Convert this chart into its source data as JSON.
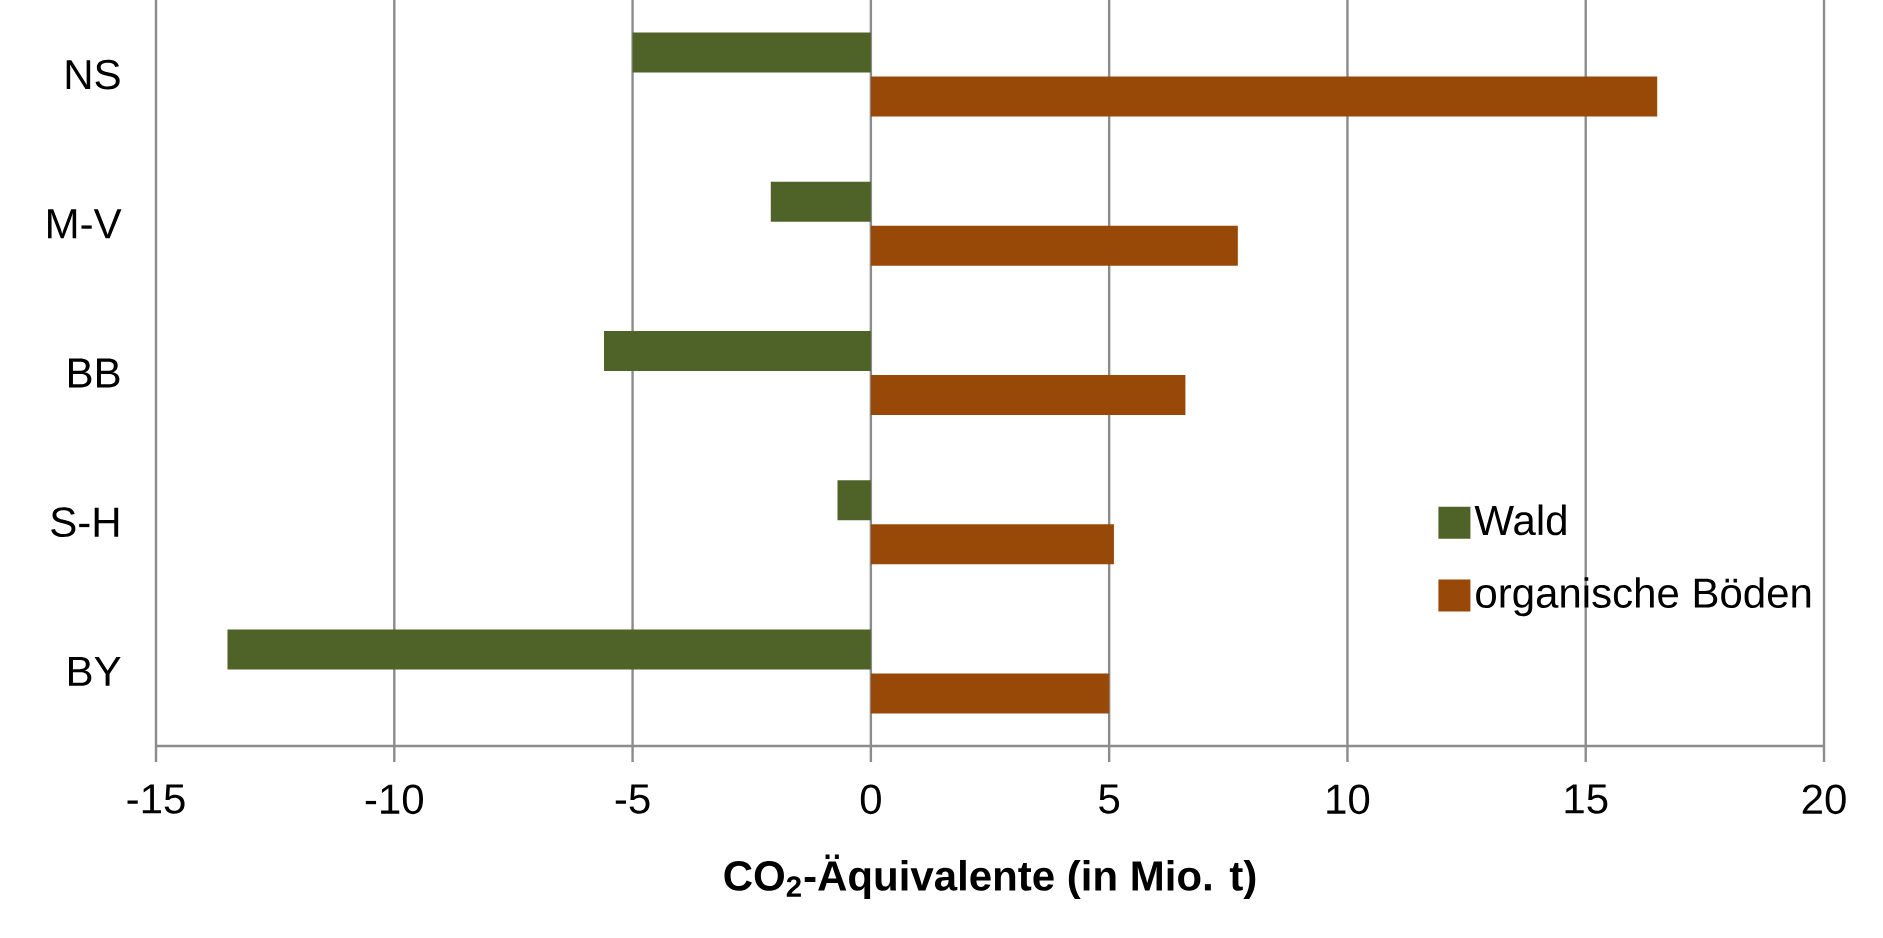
{
  "chart_data": {
    "type": "bar",
    "orientation": "horizontal",
    "xlabel": "CO$_{2}$-Äquivalente (in Mio. t)",
    "categories": [
      "NS",
      "M-V",
      "BB",
      "S-H",
      "BY"
    ],
    "series": [
      {
        "name": "Wald",
        "color": "#4f6228",
        "values": [
          -5,
          -2.1,
          -5.6,
          -0.7,
          -13.5
        ]
      },
      {
        "name": "organische Böden",
        "color": "#984807",
        "values": [
          16.5,
          7.7,
          6.6,
          5.1,
          5.0
        ]
      }
    ],
    "xlim": [
      -15,
      20
    ],
    "xticks": [
      -15,
      -10,
      -5,
      0,
      5,
      10,
      15,
      20
    ],
    "grid": "x",
    "legend": "bottom right"
  }
}
